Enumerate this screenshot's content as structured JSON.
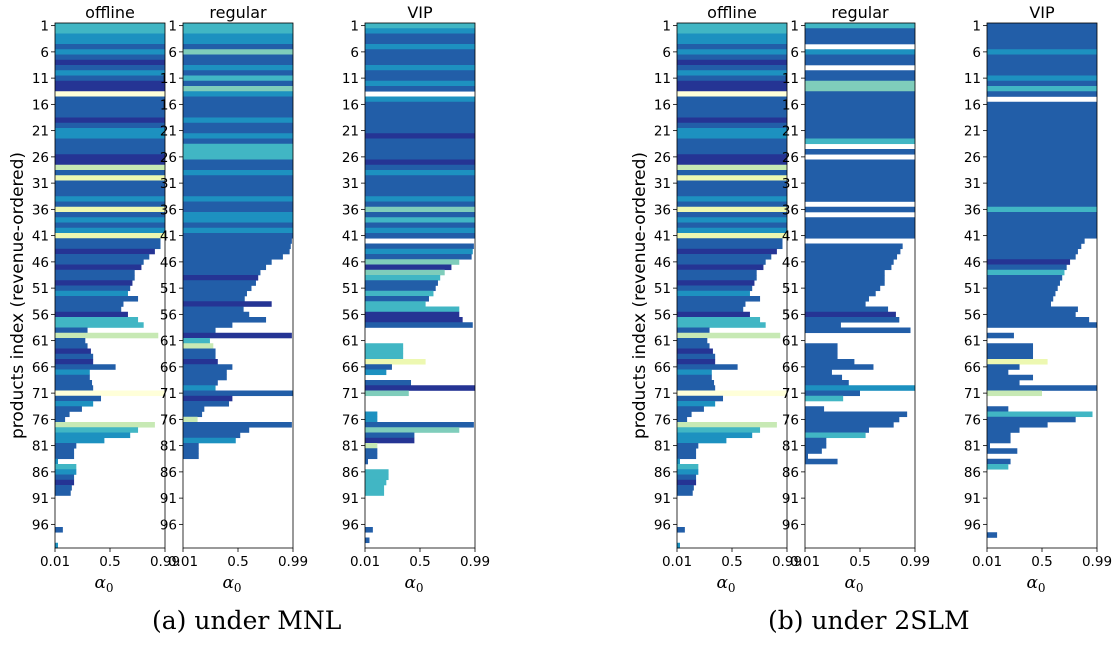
{
  "figure": {
    "captions": [
      "(a) under MNL",
      "(b) under 2SLM"
    ],
    "ylabel": "products index (revenue-ordered)",
    "xlabel": "α0",
    "subplot_titles": [
      "offline",
      "regular",
      "VIP"
    ],
    "yticks": [
      "1",
      "6",
      "11",
      "16",
      "21",
      "26",
      "31",
      "36",
      "41",
      "46",
      "51",
      "56",
      "61",
      "66",
      "71",
      "76",
      "81",
      "86",
      "91",
      "96"
    ],
    "xticks": [
      "0.01",
      "0.5",
      "0.99"
    ]
  },
  "colors": {
    "palette": [
      "#ffffd9",
      "#edf8b1",
      "#c7e9b4",
      "#7fcdbb",
      "#41b6c4",
      "#1d91c0",
      "#225ea8",
      "#253494",
      "#081d58"
    ]
  },
  "chart_data": [
    {
      "type": "heatmap",
      "title": "offline",
      "group": "(a) under MNL",
      "xlabel": "α0",
      "ylabel": "products index (revenue-ordered)",
      "xlim": [
        0.01,
        0.99
      ],
      "note": "each row = product index; bar extends from 0.01 to the largest α0 at which the product is offered; 0 = not offered",
      "ends": [
        0.99,
        0.99,
        0.99,
        0.99,
        0.99,
        0.99,
        0.99,
        0.99,
        0.99,
        0.99,
        0.99,
        0.99,
        0.99,
        0.99,
        0.99,
        0.99,
        0.99,
        0.99,
        0.99,
        0.99,
        0.99,
        0.99,
        0.99,
        0.99,
        0.99,
        0.99,
        0.99,
        0.99,
        0.99,
        0.99,
        0.99,
        0.99,
        0.99,
        0.99,
        0.99,
        0.99,
        0.99,
        0.99,
        0.99,
        0.99,
        0.99,
        0.95,
        0.95,
        0.9,
        0.85,
        0.8,
        0.78,
        0.72,
        0.72,
        0.7,
        0.68,
        0.66,
        0.75,
        0.62,
        0.6,
        0.66,
        0.75,
        0.8,
        0.3,
        0.93,
        0.28,
        0.3,
        0.33,
        0.35,
        0.35,
        0.55,
        0.32,
        0.32,
        0.34,
        0.35,
        0.99,
        0.42,
        0.35,
        0.25,
        0.14,
        0.1,
        0.9,
        0.75,
        0.68,
        0.45,
        0.2,
        0.18,
        0.18,
        0.03,
        0.2,
        0.2,
        0.18,
        0.18,
        0.16,
        0.15,
        0,
        0,
        0,
        0,
        0,
        0,
        0.08,
        0,
        0,
        0.03
      ],
      "colors": [
        4,
        4,
        5,
        5,
        6,
        5,
        6,
        7,
        6,
        5,
        6,
        7,
        7,
        0,
        6,
        6,
        6,
        6,
        7,
        6,
        5,
        5,
        6,
        6,
        6,
        7,
        7,
        2,
        6,
        1,
        6,
        6,
        6,
        5,
        6,
        1,
        6,
        5,
        6,
        5,
        1,
        6,
        6,
        7,
        6,
        6,
        7,
        6,
        6,
        7,
        6,
        5,
        6,
        6,
        6,
        7,
        4,
        4,
        6,
        2,
        6,
        6,
        7,
        6,
        7,
        6,
        5,
        6,
        6,
        6,
        0,
        6,
        5,
        6,
        6,
        6,
        2,
        4,
        5,
        5,
        6,
        6,
        6,
        5,
        4,
        5,
        6,
        7,
        6,
        6,
        6,
        6,
        6,
        6,
        6,
        6,
        6,
        6,
        6,
        5
      ]
    },
    {
      "type": "heatmap",
      "title": "regular",
      "group": "(a) under MNL",
      "xlabel": "α0",
      "xlim": [
        0.01,
        0.99
      ],
      "ends": [
        0.99,
        0.99,
        0.99,
        0.99,
        0.99,
        0.99,
        0.99,
        0.99,
        0.99,
        0.99,
        0.99,
        0.99,
        0.99,
        0.99,
        0.99,
        0.99,
        0.99,
        0.99,
        0.99,
        0.99,
        0.99,
        0.99,
        0.99,
        0.99,
        0.99,
        0.99,
        0.99,
        0.99,
        0.99,
        0.99,
        0.99,
        0.99,
        0.99,
        0.99,
        0.99,
        0.99,
        0.99,
        0.99,
        0.99,
        0.99,
        0.99,
        0.98,
        0.97,
        0.96,
        0.9,
        0.8,
        0.75,
        0.7,
        0.68,
        0.66,
        0.62,
        0.58,
        0.56,
        0.8,
        0.55,
        0.6,
        0.75,
        0.45,
        0.3,
        0.98,
        0.25,
        0.28,
        0.3,
        0.3,
        0.32,
        0.45,
        0.4,
        0.4,
        0.32,
        0.3,
        0.99,
        0.45,
        0.42,
        0.2,
        0.18,
        0.14,
        0.98,
        0.6,
        0.52,
        0.48,
        0.15,
        0.15,
        0.15,
        0,
        0,
        0,
        0,
        0,
        0,
        0,
        0,
        0,
        0,
        0,
        0,
        0,
        0,
        0,
        0,
        0
      ],
      "colors": [
        4,
        4,
        5,
        5,
        6,
        3,
        6,
        6,
        5,
        6,
        4,
        6,
        3,
        5,
        6,
        6,
        6,
        6,
        5,
        6,
        6,
        5,
        6,
        4,
        4,
        4,
        6,
        6,
        5,
        6,
        6,
        6,
        6,
        5,
        6,
        6,
        5,
        5,
        6,
        5,
        6,
        6,
        6,
        6,
        6,
        6,
        6,
        6,
        7,
        6,
        6,
        6,
        6,
        7,
        6,
        6,
        6,
        6,
        6,
        7,
        4,
        2,
        6,
        6,
        7,
        6,
        6,
        6,
        6,
        5,
        6,
        7,
        6,
        6,
        6,
        2,
        6,
        6,
        6,
        5,
        6,
        6,
        6,
        6,
        6,
        6,
        6,
        6,
        6,
        6,
        6,
        6,
        6,
        6,
        6,
        6,
        6,
        6,
        6,
        6
      ]
    },
    {
      "type": "heatmap",
      "title": "VIP",
      "group": "(a) under MNL",
      "xlabel": "α0",
      "xlim": [
        0.01,
        0.99
      ],
      "ends": [
        0.99,
        0.99,
        0.99,
        0.99,
        0.99,
        0.99,
        0.99,
        0.99,
        0.99,
        0.99,
        0.99,
        0.99,
        0.99,
        0,
        0.99,
        0.99,
        0.99,
        0.99,
        0.99,
        0.99,
        0.99,
        0.99,
        0.99,
        0.99,
        0.99,
        0.99,
        0.99,
        0.99,
        0.99,
        0.99,
        0.99,
        0.99,
        0.99,
        0.99,
        0.99,
        0.99,
        0.99,
        0.99,
        0.99,
        0.99,
        0.99,
        0,
        0.98,
        0.97,
        0.96,
        0.85,
        0.78,
        0.72,
        0.68,
        0.66,
        0.64,
        0.62,
        0.58,
        0.55,
        0.85,
        0.85,
        0.88,
        0.97,
        0,
        0,
        0,
        0.35,
        0.35,
        0.35,
        0.55,
        0.25,
        0.2,
        0,
        0.42,
        0.99,
        0.4,
        0,
        0,
        0,
        0.12,
        0.12,
        0.98,
        0.85,
        0.45,
        0.45,
        0.12,
        0.12,
        0.12,
        0.03,
        0,
        0.22,
        0.22,
        0.2,
        0.18,
        0.18,
        0,
        0,
        0,
        0,
        0,
        0,
        0.08,
        0,
        0.05,
        0
      ],
      "colors": [
        4,
        5,
        6,
        6,
        5,
        6,
        6,
        6,
        5,
        6,
        6,
        5,
        6,
        0,
        5,
        6,
        6,
        6,
        6,
        6,
        6,
        7,
        6,
        6,
        6,
        6,
        7,
        6,
        5,
        6,
        6,
        6,
        6,
        5,
        6,
        3,
        6,
        4,
        6,
        5,
        6,
        6,
        6,
        5,
        6,
        3,
        7,
        3,
        4,
        6,
        6,
        4,
        6,
        4,
        4,
        7,
        7,
        6,
        6,
        6,
        6,
        4,
        4,
        4,
        1,
        6,
        5,
        6,
        6,
        7,
        3,
        6,
        6,
        6,
        5,
        5,
        6,
        3,
        6,
        7,
        2,
        6,
        6,
        6,
        6,
        4,
        4,
        4,
        4,
        4,
        4,
        6,
        6,
        6,
        6,
        6,
        6,
        6,
        6,
        4
      ]
    },
    {
      "type": "heatmap",
      "title": "offline",
      "group": "(b) under 2SLM",
      "xlabel": "α0",
      "ylabel": "products index (revenue-ordered)",
      "xlim": [
        0.01,
        0.99
      ],
      "ends": [
        0.99,
        0.99,
        0.99,
        0.99,
        0.99,
        0.99,
        0.99,
        0.99,
        0.99,
        0.99,
        0.99,
        0.99,
        0.99,
        0.99,
        0.99,
        0.99,
        0.99,
        0.99,
        0.99,
        0.99,
        0.99,
        0.99,
        0.99,
        0.99,
        0.99,
        0.99,
        0.99,
        0.99,
        0.99,
        0.99,
        0.99,
        0.99,
        0.99,
        0.99,
        0.99,
        0.99,
        0.99,
        0.99,
        0.99,
        0.99,
        0.99,
        0.95,
        0.95,
        0.9,
        0.85,
        0.8,
        0.78,
        0.72,
        0.72,
        0.7,
        0.68,
        0.66,
        0.75,
        0.62,
        0.6,
        0.66,
        0.75,
        0.8,
        0.3,
        0.93,
        0.28,
        0.3,
        0.33,
        0.35,
        0.35,
        0.55,
        0.32,
        0.32,
        0.34,
        0.35,
        0.99,
        0.42,
        0.35,
        0.25,
        0.14,
        0.1,
        0.9,
        0.75,
        0.68,
        0.45,
        0.2,
        0.18,
        0.18,
        0.03,
        0.2,
        0.2,
        0.18,
        0.18,
        0.16,
        0.15,
        0,
        0,
        0,
        0,
        0,
        0,
        0.08,
        0,
        0,
        0.03
      ],
      "colors": [
        4,
        4,
        5,
        5,
        6,
        5,
        6,
        7,
        6,
        5,
        6,
        7,
        7,
        0,
        6,
        6,
        6,
        6,
        7,
        6,
        5,
        5,
        6,
        6,
        6,
        7,
        7,
        2,
        6,
        1,
        6,
        6,
        6,
        5,
        6,
        1,
        6,
        5,
        6,
        5,
        1,
        6,
        6,
        7,
        6,
        6,
        7,
        6,
        6,
        7,
        6,
        5,
        6,
        6,
        6,
        7,
        4,
        4,
        6,
        2,
        6,
        6,
        7,
        6,
        7,
        6,
        5,
        6,
        6,
        6,
        0,
        6,
        5,
        6,
        6,
        6,
        2,
        4,
        5,
        5,
        6,
        6,
        6,
        5,
        4,
        5,
        6,
        7,
        6,
        6,
        6,
        6,
        6,
        6,
        6,
        6,
        6,
        6,
        6,
        5
      ]
    },
    {
      "type": "heatmap",
      "title": "regular",
      "group": "(b) under 2SLM",
      "xlabel": "α0",
      "xlim": [
        0.01,
        0.99
      ],
      "ends": [
        0.99,
        0.99,
        0.99,
        0.99,
        0,
        0.99,
        0.99,
        0.99,
        0,
        0.99,
        0.99,
        0.99,
        0.99,
        0.99,
        0.99,
        0.99,
        0.99,
        0.99,
        0.99,
        0.99,
        0.99,
        0.99,
        0.99,
        0,
        0.99,
        0,
        0.99,
        0.99,
        0.99,
        0.99,
        0.99,
        0.99,
        0.99,
        0.99,
        0,
        0.99,
        0,
        0.99,
        0.99,
        0.99,
        0.99,
        0,
        0.88,
        0.86,
        0.83,
        0.8,
        0.78,
        0.72,
        0.72,
        0.72,
        0.68,
        0.64,
        0.58,
        0.55,
        0.75,
        0.82,
        0.85,
        0.33,
        0.95,
        0,
        0,
        0.3,
        0.3,
        0.3,
        0.45,
        0.62,
        0.25,
        0.34,
        0.4,
        0.99,
        0.5,
        0.35,
        0,
        0.18,
        0.92,
        0.85,
        0.8,
        0.58,
        0.55,
        0.2,
        0.2,
        0.16,
        0.03,
        0.3,
        0,
        0,
        0,
        0,
        0,
        0,
        0,
        0,
        0,
        0,
        0,
        0,
        0,
        0,
        0,
        0
      ],
      "colors": [
        4,
        6,
        6,
        6,
        0,
        5,
        6,
        6,
        0,
        6,
        6,
        3,
        3,
        6,
        6,
        6,
        6,
        6,
        6,
        6,
        6,
        6,
        4,
        0,
        6,
        0,
        6,
        6,
        6,
        6,
        6,
        6,
        6,
        6,
        0,
        6,
        0,
        6,
        6,
        6,
        6,
        6,
        6,
        6,
        6,
        6,
        6,
        6,
        6,
        6,
        6,
        6,
        6,
        6,
        6,
        7,
        6,
        6,
        6,
        6,
        6,
        6,
        6,
        6,
        6,
        6,
        6,
        6,
        6,
        5,
        6,
        4,
        6,
        6,
        6,
        6,
        6,
        6,
        4,
        6,
        6,
        6,
        6,
        6,
        6,
        6,
        6,
        6,
        6,
        6,
        6,
        6,
        6,
        6,
        6,
        6,
        6,
        6,
        6,
        6
      ]
    },
    {
      "type": "heatmap",
      "title": "VIP",
      "group": "(b) under 2SLM",
      "xlabel": "α0",
      "xlim": [
        0.01,
        0.99
      ],
      "ends": [
        0.99,
        0.99,
        0.99,
        0.99,
        0.99,
        0.99,
        0.99,
        0.99,
        0.99,
        0.99,
        0.99,
        0.99,
        0.99,
        0.99,
        0,
        0.99,
        0.99,
        0.99,
        0.99,
        0.99,
        0.99,
        0.99,
        0.99,
        0.99,
        0.99,
        0.99,
        0.99,
        0.99,
        0.99,
        0.99,
        0.99,
        0.99,
        0.99,
        0.99,
        0.99,
        0.99,
        0.99,
        0.99,
        0.99,
        0.99,
        0.99,
        0.88,
        0.85,
        0.82,
        0.8,
        0.75,
        0.72,
        0.7,
        0.68,
        0.66,
        0.64,
        0.62,
        0.6,
        0.58,
        0.82,
        0.8,
        0.92,
        0.99,
        0,
        0.25,
        0,
        0.42,
        0.42,
        0.42,
        0.55,
        0.3,
        0.2,
        0.42,
        0.3,
        0.99,
        0.5,
        0,
        0,
        0.2,
        0.95,
        0.8,
        0.55,
        0.3,
        0.22,
        0.22,
        0.03,
        0.28,
        0,
        0.22,
        0.2,
        0,
        0,
        0,
        0,
        0,
        0,
        0,
        0,
        0,
        0,
        0,
        0,
        0.1,
        0,
        0
      ],
      "colors": [
        6,
        6,
        6,
        6,
        6,
        5,
        6,
        6,
        6,
        6,
        5,
        6,
        4,
        6,
        0,
        6,
        6,
        6,
        6,
        6,
        6,
        6,
        6,
        6,
        6,
        6,
        6,
        6,
        6,
        6,
        6,
        6,
        6,
        6,
        6,
        4,
        6,
        6,
        6,
        6,
        6,
        6,
        6,
        6,
        6,
        7,
        6,
        4,
        6,
        6,
        6,
        6,
        6,
        6,
        6,
        6,
        6,
        6,
        6,
        6,
        6,
        6,
        6,
        6,
        1,
        6,
        6,
        6,
        6,
        6,
        2,
        6,
        6,
        6,
        4,
        6,
        6,
        6,
        6,
        6,
        6,
        6,
        6,
        6,
        4,
        6,
        6,
        6,
        6,
        6,
        6,
        6,
        6,
        6,
        6,
        6,
        6,
        6,
        6,
        6
      ]
    }
  ]
}
